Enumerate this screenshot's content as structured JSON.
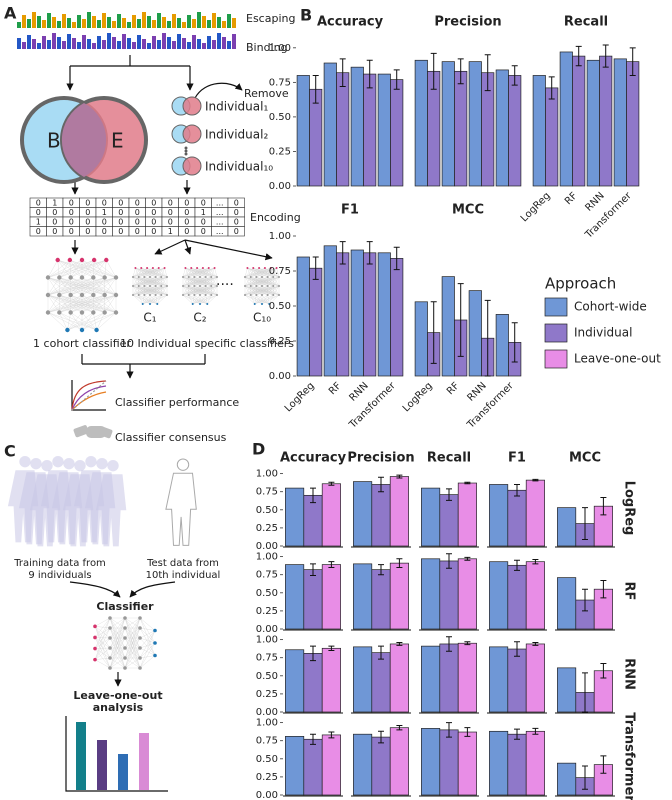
{
  "panel_labels": [
    "A",
    "B",
    "C",
    "D"
  ],
  "panel_a": {
    "logo_labels": [
      "Escaping",
      "Binding"
    ],
    "remove": "Remove",
    "venn": [
      "B",
      "E"
    ],
    "individuals": [
      "Individual₁",
      "Individual₂",
      "Individual₁₀"
    ],
    "encoding_matrix": [
      [
        "0",
        "1",
        "0",
        "0",
        "0",
        "0",
        "0",
        "0",
        "0",
        "0",
        "0",
        "...",
        "0"
      ],
      [
        "0",
        "0",
        "0",
        "0",
        "1",
        "0",
        "0",
        "0",
        "0",
        "0",
        "1",
        "...",
        "0"
      ],
      [
        "1",
        "0",
        "0",
        "0",
        "0",
        "0",
        "0",
        "0",
        "0",
        "0",
        "0",
        "...",
        "0"
      ],
      [
        "0",
        "0",
        "0",
        "0",
        "0",
        "0",
        "0",
        "0",
        "1",
        "0",
        "0",
        "...",
        "0"
      ]
    ],
    "encoding": "Encoding",
    "classifier_labels": [
      "C₁",
      "C₂",
      "C₁₀"
    ],
    "cohort_classifier": "1 cohort classifier",
    "individual_classifiers": "10 Individual specific classifiers",
    "performance": "Classifier performance",
    "consensus": "Classifier consensus"
  },
  "panel_c": {
    "training": [
      "Training data from",
      "9 individuals"
    ],
    "test": [
      "Test data from",
      "10th individual"
    ],
    "classifier": "Classifier",
    "analysis": [
      "Leave-one-out",
      "analysis"
    ]
  },
  "legend": {
    "title": "Approach",
    "entries": [
      {
        "name": "Cohort-wide",
        "color": "#6f97d6"
      },
      {
        "name": "Individual",
        "color": "#8f78c9"
      },
      {
        "name": "Leave-one-out",
        "color": "#e88de6"
      }
    ]
  },
  "chart_data": [
    {
      "type": "bar",
      "metrics": [
        "Accuracy",
        "Precision",
        "Recall",
        "F1",
        "MCC"
      ],
      "models": [
        "LogReg",
        "RF",
        "RNN",
        "Transformer"
      ],
      "ylim": [
        0,
        1.1
      ],
      "yticks": [
        {
          "value": 0,
          "label": "0.00"
        },
        {
          "value": 0.25,
          "label": "0.25"
        },
        {
          "value": 0.5,
          "label": "0.50"
        },
        {
          "value": 0.75,
          "label": "0.75"
        },
        {
          "value": 1,
          "label": "1.00"
        }
      ],
      "series": [
        {
          "values": [
            [
              0.8,
              0.89,
              0.86,
              0.81
            ],
            [
              0.91,
              0.9,
              0.9,
              0.84
            ],
            [
              0.8,
              0.97,
              0.91,
              0.92
            ],
            [
              0.85,
              0.93,
              0.9,
              0.88
            ],
            [
              0.53,
              0.71,
              0.61,
              0.44
            ]
          ]
        },
        {
          "values": [
            [
              0.7,
              0.82,
              0.81,
              0.77
            ],
            [
              0.83,
              0.83,
              0.82,
              0.8
            ],
            [
              0.71,
              0.94,
              0.94,
              0.9
            ],
            [
              0.77,
              0.88,
              0.88,
              0.84
            ],
            [
              0.31,
              0.4,
              0.27,
              0.24
            ]
          ],
          "errors": [
            [
              0.1,
              0.1,
              0.1,
              0.07
            ],
            [
              0.13,
              0.09,
              0.13,
              0.07
            ],
            [
              0.08,
              0.07,
              0.08,
              0.1
            ],
            [
              0.08,
              0.08,
              0.08,
              0.08
            ],
            [
              0.22,
              0.26,
              0.27,
              0.14
            ]
          ]
        }
      ]
    },
    {
      "type": "bar",
      "metrics": [
        "Accuracy",
        "Precision",
        "Recall",
        "F1",
        "MCC"
      ],
      "models": [
        "LogReg",
        "RF",
        "RNN",
        "Transformer"
      ],
      "ylim": [
        0,
        1.05
      ],
      "yticks": [
        {
          "value": 0,
          "label": "0.00"
        },
        {
          "value": 0.25,
          "label": "0.25"
        },
        {
          "value": 0.5,
          "label": "0.50"
        },
        {
          "value": 0.75,
          "label": "0.75"
        },
        {
          "value": 1,
          "label": "1.00"
        }
      ],
      "series": [
        {
          "values": [
            [
              0.8,
              0.89,
              0.86,
              0.81
            ],
            [
              0.89,
              0.9,
              0.9,
              0.84
            ],
            [
              0.8,
              0.97,
              0.91,
              0.92
            ],
            [
              0.85,
              0.93,
              0.9,
              0.88
            ],
            [
              0.53,
              0.71,
              0.61,
              0.44
            ]
          ]
        },
        {
          "values": [
            [
              0.7,
              0.82,
              0.81,
              0.77
            ],
            [
              0.85,
              0.82,
              0.82,
              0.8
            ],
            [
              0.71,
              0.94,
              0.94,
              0.9
            ],
            [
              0.77,
              0.88,
              0.87,
              0.84
            ],
            [
              0.31,
              0.4,
              0.27,
              0.24
            ]
          ],
          "errors": [
            [
              0.1,
              0.08,
              0.1,
              0.07
            ],
            [
              0.1,
              0.07,
              0.09,
              0.08
            ],
            [
              0.08,
              0.1,
              0.1,
              0.1
            ],
            [
              0.08,
              0.07,
              0.1,
              0.07
            ],
            [
              0.22,
              0.15,
              0.27,
              0.16
            ]
          ]
        },
        {
          "values": [
            [
              0.86,
              0.89,
              0.88,
              0.83
            ],
            [
              0.96,
              0.91,
              0.94,
              0.93
            ],
            [
              0.87,
              0.97,
              0.95,
              0.87
            ],
            [
              0.91,
              0.93,
              0.94,
              0.88
            ],
            [
              0.55,
              0.55,
              0.57,
              0.42
            ]
          ],
          "errors": [
            [
              0.02,
              0.04,
              0.03,
              0.04
            ],
            [
              0.02,
              0.06,
              0.02,
              0.03
            ],
            [
              0.01,
              0.02,
              0.02,
              0.06
            ],
            [
              0.01,
              0.03,
              0.02,
              0.04
            ],
            [
              0.12,
              0.12,
              0.1,
              0.12
            ]
          ]
        }
      ]
    }
  ]
}
